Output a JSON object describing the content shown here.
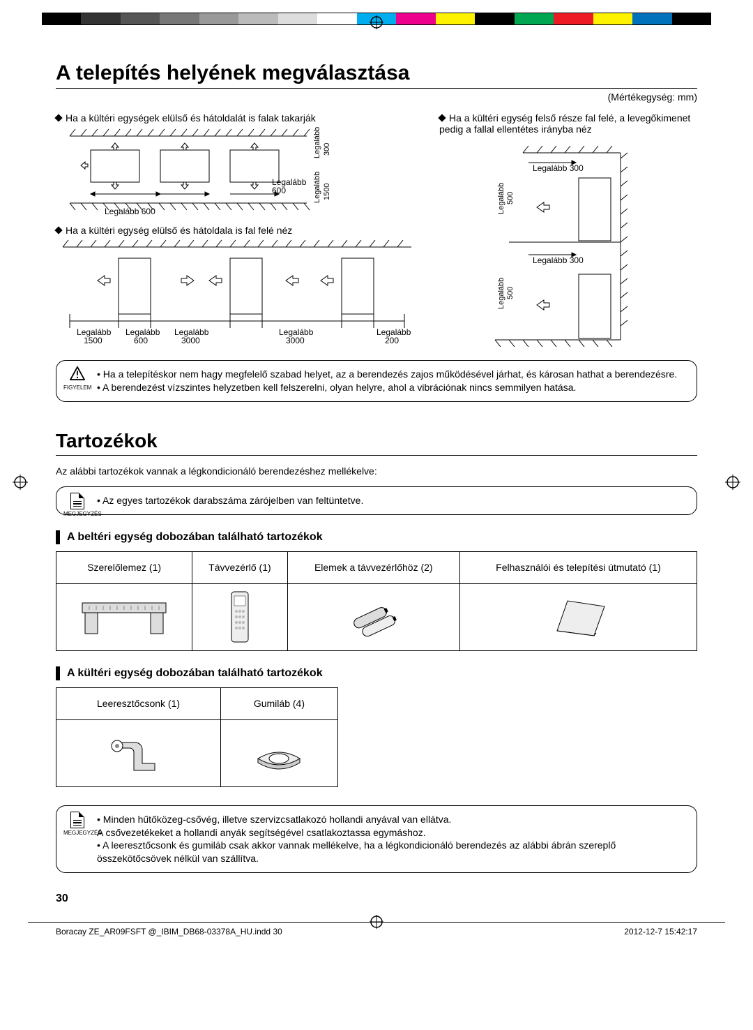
{
  "print_bar_colors": [
    "#000",
    "#333",
    "#555",
    "#777",
    "#999",
    "#bbb",
    "#ddd",
    "#fff",
    "#00aeef",
    "#ec008c",
    "#fff200",
    "#000",
    "#00a651",
    "#ed1c24",
    "#fff200",
    "#0072bc",
    "#000"
  ],
  "heading1": "A telepítés helyének megválasztása",
  "unit_label": "(Mértékegység: mm)",
  "diagA": {
    "caption": "Ha a kültéri egységek elülső és hátoldalát is falak takarják",
    "label_left": "Legalább 600",
    "label_right": "Legalább 600",
    "label_top_rot": "Legalább 300",
    "label_side_rot": "Legalább 1500"
  },
  "diagB": {
    "caption": "Ha a kültéri egység elülső és hátoldala is fal felé néz",
    "labels": [
      "Legalább 1500",
      "Legalább 600",
      "Legalább 3000",
      "Legalább 3000",
      "Legalább 200"
    ]
  },
  "diagC": {
    "caption": "Ha a kültéri egység felső része fal felé, a levegőkimenet pedig a fallal ellentétes irányba néz",
    "label_500": "Legalább 500",
    "label_300": "Legalább 300"
  },
  "warn": {
    "icon_label": "FIGYELEM",
    "items": [
      "Ha a telepítéskor nem hagy megfelelő szabad helyet, az a berendezés zajos működésével járhat, és károsan hathat a berendezésre.",
      "A berendezést vízszintes helyzetben kell felszerelni, olyan helyre, ahol a vibrációnak nincs semmilyen hatása."
    ]
  },
  "heading2": "Tartozékok",
  "intro2": "Az alábbi tartozékok vannak a légkondicionáló berendezéshez mellékelve:",
  "note1": {
    "icon_label": "MEGJEGYZÉS",
    "items": [
      "Az egyes tartozékok darabszáma zárójelben van feltüntetve."
    ]
  },
  "sub_indoor": "A beltéri egység dobozában található tartozékok",
  "indoor": {
    "headers": [
      "Szerelőlemez (1)",
      "Távvezérlő (1)",
      "Elemek a távvezérlőhöz (2)",
      "Felhasználói és telepítési útmutató (1)"
    ]
  },
  "sub_outdoor": "A kültéri egység dobozában található tartozékok",
  "outdoor": {
    "headers": [
      "Leeresztőcsonk (1)",
      "Gumiláb (4)"
    ]
  },
  "note2": {
    "icon_label": "MEGJEGYZÉS",
    "items": [
      "Minden hűtőközeg-csővég, illetve szervizcsatlakozó hollandi anyával van ellátva.\nA csővezetékeket a hollandi anyák segítségével csatlakoztassa egymáshoz.",
      "A leeresztőcsonk és gumiláb csak akkor vannak mellékelve, ha a légkondicionáló berendezés az alábbi ábrán szereplő összekötőcsövek nélkül van szállítva."
    ]
  },
  "pagenum": "30",
  "footer_file": "Boracay ZE_AR09FSFT @_IBIM_DB68-03378A_HU.indd   30",
  "footer_ts": "2012-12-7   15:42:17"
}
